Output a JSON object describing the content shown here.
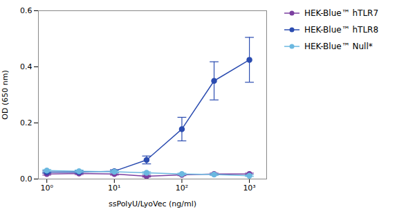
{
  "chart_data": {
    "type": "line",
    "xlabel": "ssPolyU/LyoVec (ng/ml)",
    "ylabel": "OD (650 nm)",
    "log": "x",
    "xlim": [
      0.75,
      1800
    ],
    "xticks": [
      {
        "value": 1,
        "label": "10⁰"
      },
      {
        "value": 10,
        "label": "10¹"
      },
      {
        "value": 100,
        "label": "10²"
      },
      {
        "value": 1000,
        "label": "10³"
      }
    ],
    "ylim": [
      0,
      0.6
    ],
    "yticks": [
      {
        "value": 0,
        "label": "0.0"
      },
      0.2,
      0.4,
      0.6
    ],
    "grid": false,
    "legend": "right",
    "marker": "circle",
    "x": [
      1,
      3,
      10,
      30,
      100,
      300,
      1000
    ],
    "series": [
      {
        "name": "HEK-Blue™ hTLR7",
        "color": "#7B3FA0",
        "values": [
          0.018,
          0.02,
          0.018,
          0.01,
          0.015,
          0.018,
          0.018
        ],
        "yerr": [
          0.004,
          0.004,
          0.004,
          0.003,
          0.003,
          0.003,
          0.003
        ]
      },
      {
        "name": "HEK-Blue™ hTLR8",
        "color": "#2B4CB0",
        "values": [
          0.025,
          0.025,
          0.028,
          0.068,
          0.178,
          0.35,
          0.425
        ],
        "yerr": [
          0.004,
          0.004,
          0.005,
          0.014,
          0.042,
          0.068,
          0.08
        ]
      },
      {
        "name": "HEK-Blue™ Null*",
        "color": "#6BB8E0",
        "values": [
          0.03,
          0.028,
          0.026,
          0.022,
          0.018,
          0.016,
          0.012
        ],
        "yerr": [
          0.004,
          0.004,
          0.004,
          0.004,
          0.003,
          0.003,
          0.003
        ]
      }
    ]
  }
}
